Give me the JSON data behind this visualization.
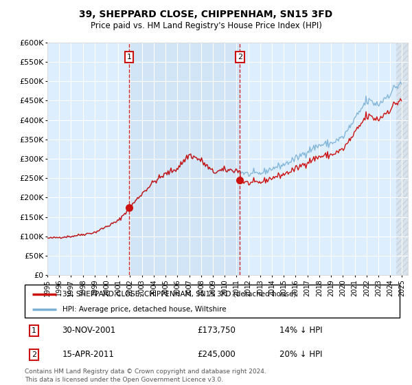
{
  "title": "39, SHEPPARD CLOSE, CHIPPENHAM, SN15 3FD",
  "subtitle": "Price paid vs. HM Land Registry's House Price Index (HPI)",
  "ylabel_ticks": [
    "£0",
    "£50K",
    "£100K",
    "£150K",
    "£200K",
    "£250K",
    "£300K",
    "£350K",
    "£400K",
    "£450K",
    "£500K",
    "£550K",
    "£600K"
  ],
  "ylim": [
    0,
    600000
  ],
  "yticks": [
    0,
    50000,
    100000,
    150000,
    200000,
    250000,
    300000,
    350000,
    400000,
    450000,
    500000,
    550000,
    600000
  ],
  "bg_color": "#ddeeff",
  "line_color_hpi": "#7ab0d4",
  "line_color_price": "#cc1111",
  "vline_color": "#cc1111",
  "marker_color": "#cc1111",
  "event1_year": 2001.917,
  "event1_price": 173750,
  "event2_year": 2011.292,
  "event2_price": 245000,
  "xlim_left": 1995.0,
  "xlim_right": 2025.5,
  "legend_label_price": "39, SHEPPARD CLOSE, CHIPPENHAM, SN15 3FD (detached house)",
  "legend_label_hpi": "HPI: Average price, detached house, Wiltshire",
  "table_row1": [
    "1",
    "30-NOV-2001",
    "£173,750",
    "14% ↓ HPI"
  ],
  "table_row2": [
    "2",
    "15-APR-2011",
    "£245,000",
    "20% ↓ HPI"
  ],
  "footer": "Contains HM Land Registry data © Crown copyright and database right 2024.\nThis data is licensed under the Open Government Licence v3.0."
}
